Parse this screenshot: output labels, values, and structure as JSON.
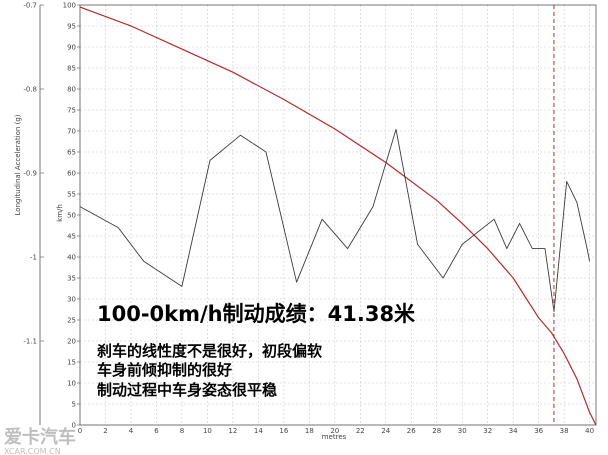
{
  "chart_data": {
    "type": "line",
    "xlabel": "metres",
    "ylabel_left": "Longitudinal Acceleration (g)",
    "ylabel_right": "km/h",
    "xlim": [
      0,
      40.5
    ],
    "ylim_speed": [
      0,
      100
    ],
    "ylim_accel": [
      -1.2,
      -0.7
    ],
    "x_ticks": [
      0,
      2,
      4,
      6,
      8,
      10,
      12,
      14,
      16,
      18,
      20,
      22,
      24,
      26,
      28,
      30,
      32,
      34,
      36,
      38,
      40
    ],
    "speed_ticks": [
      0,
      5,
      10,
      15,
      20,
      25,
      30,
      35,
      40,
      45,
      50,
      55,
      60,
      65,
      70,
      75,
      80,
      85,
      90,
      95,
      100
    ],
    "accel_ticks": [
      "-0.7",
      "-0.8",
      "-0.9",
      "-1",
      "-1.1"
    ],
    "grid": true,
    "series": [
      {
        "axis": "speed",
        "color": "#b52a2a",
        "x": [
          0,
          4,
          8,
          12,
          16,
          20,
          24,
          28,
          30,
          32,
          34,
          36,
          37,
          38,
          39,
          40,
          40.5
        ],
        "values": [
          99.5,
          95,
          89.5,
          84,
          77.5,
          70.5,
          62.5,
          53.5,
          48,
          42,
          35,
          25.5,
          22,
          17,
          11,
          3,
          0
        ]
      },
      {
        "axis": "accel",
        "color": "#3c3c3c",
        "x": [
          0,
          3,
          5,
          8,
          10.2,
          12.6,
          14.6,
          17,
          19,
          21,
          23,
          24.8,
          26.5,
          28.5,
          30,
          32.5,
          33.5,
          34.5,
          35.5,
          36.5,
          37.2,
          38.2,
          39,
          39.8,
          40
        ],
        "values": [
          -0.94,
          -0.965,
          -1.005,
          -1.035,
          -0.885,
          -0.855,
          -0.875,
          -1.03,
          -0.955,
          -0.99,
          -0.94,
          -0.848,
          -0.985,
          -1.025,
          -0.985,
          -0.955,
          -0.99,
          -0.96,
          -0.99,
          -0.99,
          -1.065,
          -0.91,
          -0.935,
          -0.99,
          -1.005
        ]
      }
    ],
    "reference_line": {
      "x": 37.2,
      "style": "dashed",
      "color": "#b52a2a"
    }
  },
  "annotation": {
    "headline": "100-0km/h制动成绩：41.38米",
    "notes": [
      "刹车的线性度不是很好，初段偏软",
      "车身前倾抑制的很好",
      "制动过程中车身姿态很平稳"
    ]
  },
  "watermark": {
    "brand": "爱卡汽车",
    "site": "XCAR.COM.CN"
  }
}
